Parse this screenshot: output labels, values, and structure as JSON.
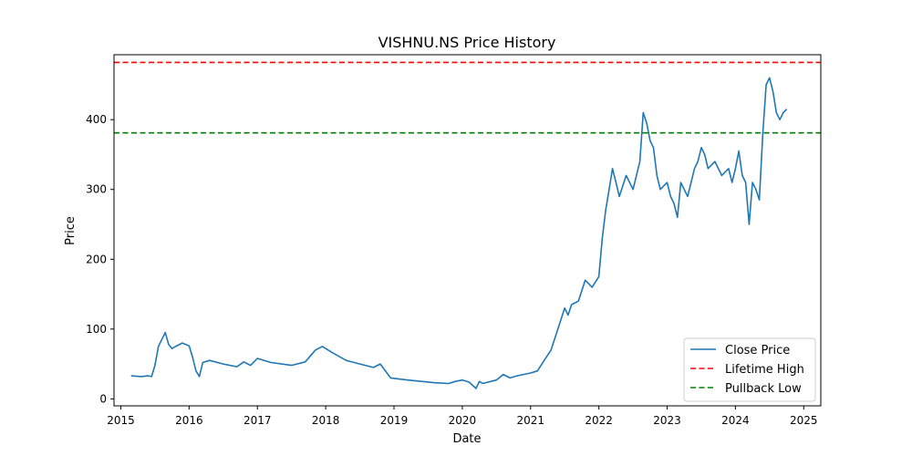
{
  "chart_data": {
    "type": "line",
    "title": "VISHNU.NS Price History",
    "xlabel": "Date",
    "ylabel": "Price",
    "xlim": [
      2014.9,
      2025.25
    ],
    "ylim": [
      -10,
      493
    ],
    "x_ticks": [
      2015,
      2016,
      2017,
      2018,
      2019,
      2020,
      2021,
      2022,
      2023,
      2024,
      2025
    ],
    "x_tick_labels": [
      "2015",
      "2016",
      "2017",
      "2018",
      "2019",
      "2020",
      "2021",
      "2022",
      "2023",
      "2024",
      "2025"
    ],
    "y_ticks": [
      0,
      100,
      200,
      300,
      400
    ],
    "y_tick_labels": [
      "0",
      "100",
      "200",
      "300",
      "400"
    ],
    "grid": false,
    "legend_position": "lower-right",
    "series": [
      {
        "name": "Close Price",
        "color": "#1f77b4",
        "style": "solid",
        "x": [
          2015.15,
          2015.3,
          2015.4,
          2015.45,
          2015.5,
          2015.55,
          2015.6,
          2015.65,
          2015.7,
          2015.75,
          2015.8,
          2015.9,
          2016.0,
          2016.05,
          2016.1,
          2016.15,
          2016.2,
          2016.3,
          2016.5,
          2016.7,
          2016.8,
          2016.9,
          2017.0,
          2017.2,
          2017.5,
          2017.7,
          2017.85,
          2017.95,
          2018.1,
          2018.3,
          2018.5,
          2018.7,
          2018.8,
          2018.95,
          2019.2,
          2019.4,
          2019.6,
          2019.8,
          2019.9,
          2020.0,
          2020.1,
          2020.2,
          2020.25,
          2020.3,
          2020.5,
          2020.6,
          2020.7,
          2020.8,
          2021.0,
          2021.1,
          2021.2,
          2021.3,
          2021.4,
          2021.5,
          2021.55,
          2021.6,
          2021.7,
          2021.8,
          2021.9,
          2022.0,
          2022.05,
          2022.1,
          2022.15,
          2022.2,
          2022.25,
          2022.3,
          2022.4,
          2022.5,
          2022.6,
          2022.65,
          2022.7,
          2022.75,
          2022.8,
          2022.85,
          2022.9,
          2023.0,
          2023.05,
          2023.1,
          2023.15,
          2023.2,
          2023.3,
          2023.4,
          2023.45,
          2023.5,
          2023.55,
          2023.6,
          2023.7,
          2023.8,
          2023.9,
          2023.95,
          2024.0,
          2024.05,
          2024.1,
          2024.15,
          2024.2,
          2024.25,
          2024.3,
          2024.35,
          2024.4,
          2024.45,
          2024.5,
          2024.55,
          2024.6,
          2024.65,
          2024.7,
          2024.75
        ],
        "y": [
          33,
          32,
          33,
          32,
          48,
          75,
          85,
          95,
          78,
          72,
          75,
          80,
          76,
          60,
          40,
          32,
          52,
          55,
          50,
          46,
          53,
          48,
          58,
          52,
          48,
          53,
          70,
          75,
          66,
          55,
          50,
          45,
          50,
          30,
          27,
          25,
          23,
          22,
          25,
          27,
          24,
          15,
          25,
          22,
          27,
          35,
          30,
          33,
          37,
          40,
          55,
          70,
          100,
          130,
          120,
          135,
          140,
          170,
          160,
          175,
          230,
          270,
          300,
          330,
          310,
          290,
          320,
          300,
          340,
          410,
          395,
          370,
          360,
          320,
          300,
          310,
          290,
          280,
          260,
          310,
          290,
          330,
          340,
          360,
          350,
          330,
          340,
          320,
          330,
          310,
          330,
          355,
          320,
          310,
          250,
          310,
          300,
          285,
          380,
          450,
          460,
          440,
          410,
          400,
          410,
          415
        ]
      },
      {
        "name": "Lifetime High",
        "color": "#ff0000",
        "style": "dashed",
        "hline": 482
      },
      {
        "name": "Pullback Low",
        "color": "#008000",
        "style": "dashed",
        "hline": 381
      }
    ]
  }
}
